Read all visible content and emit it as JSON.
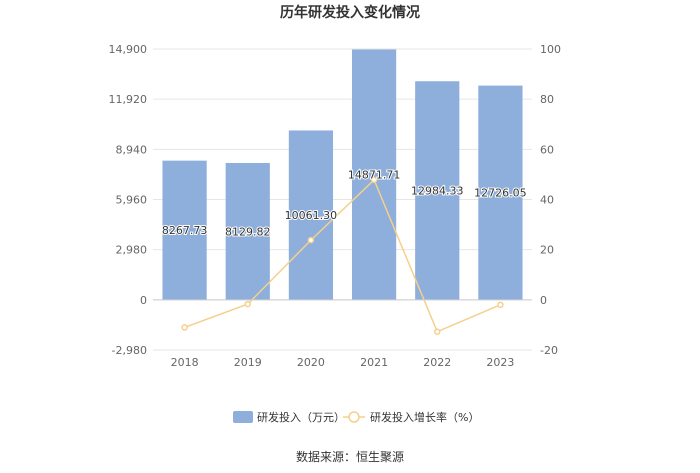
{
  "chart_data": {
    "type": "bar",
    "title": "历年研发投入变化情况",
    "categories": [
      "2018",
      "2019",
      "2020",
      "2021",
      "2022",
      "2023"
    ],
    "series": [
      {
        "name": "研发投入（万元）",
        "type": "bar",
        "axis": "left",
        "values": [
          8267.73,
          8129.82,
          10061.3,
          14871.71,
          12984.33,
          12726.05
        ],
        "labels": [
          "8267.73",
          "8129.82",
          "10061.30",
          "14871.71",
          "12984.33",
          "12726.05"
        ],
        "color": "#8eaedb"
      },
      {
        "name": "研发投入增长率（%）",
        "type": "line",
        "axis": "right",
        "values": [
          -11,
          -1.7,
          23.8,
          47.8,
          -12.7,
          -2
        ],
        "color": "#f5d08a"
      }
    ],
    "y_left": {
      "ticks": [
        "14,900",
        "11,920",
        "8,940",
        "5,960",
        "2,980",
        "0",
        "-2,980"
      ],
      "range": [
        -2980,
        14900
      ]
    },
    "y_right": {
      "ticks": [
        "100",
        "80",
        "60",
        "40",
        "20",
        "0",
        "-20"
      ],
      "range": [
        -20,
        100
      ]
    },
    "grid": true,
    "legend_position": "bottom"
  },
  "source_text": "数据来源：恒生聚源"
}
